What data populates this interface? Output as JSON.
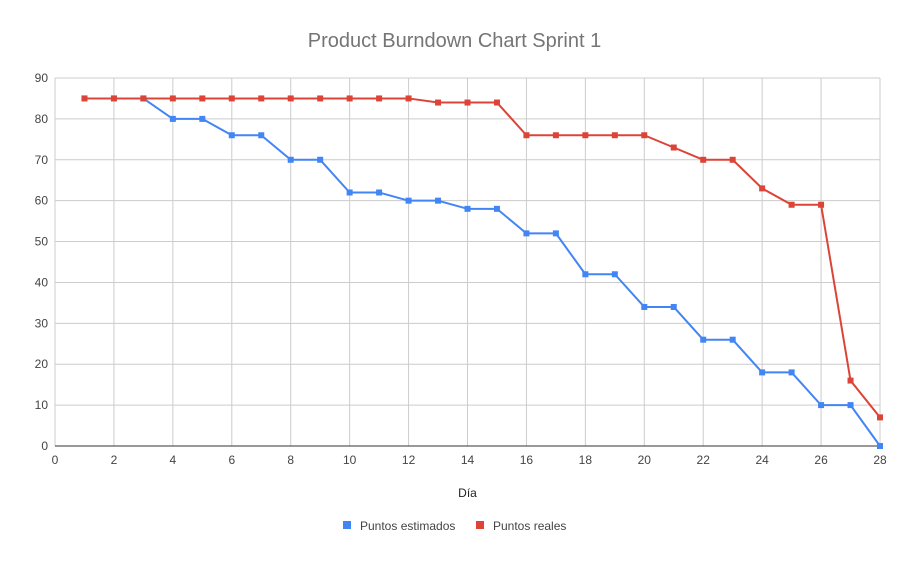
{
  "chart_data": {
    "type": "line",
    "title": "Product Burndown Chart Sprint 1",
    "xlabel": "Día",
    "ylabel": "",
    "xlim": [
      0,
      28
    ],
    "ylim": [
      0,
      90
    ],
    "x_ticks": [
      0,
      2,
      4,
      6,
      8,
      10,
      12,
      14,
      16,
      18,
      20,
      22,
      24,
      26,
      28
    ],
    "y_ticks": [
      0,
      10,
      20,
      30,
      40,
      50,
      60,
      70,
      80,
      90
    ],
    "grid": true,
    "legend_position": "bottom",
    "series": [
      {
        "name": "Puntos estimados",
        "color": "#4285f4",
        "x": [
          1,
          2,
          3,
          4,
          5,
          6,
          7,
          8,
          9,
          10,
          11,
          12,
          13,
          14,
          15,
          16,
          17,
          18,
          19,
          20,
          21,
          22,
          23,
          24,
          25,
          26,
          27,
          28
        ],
        "values": [
          85,
          85,
          85,
          80,
          80,
          76,
          76,
          70,
          70,
          62,
          62,
          60,
          60,
          58,
          58,
          52,
          52,
          42,
          42,
          34,
          34,
          26,
          26,
          18,
          18,
          10,
          10,
          0
        ]
      },
      {
        "name": "Puntos reales",
        "color": "#db4437",
        "x": [
          1,
          2,
          3,
          4,
          5,
          6,
          7,
          8,
          9,
          10,
          11,
          12,
          13,
          14,
          15,
          16,
          17,
          18,
          19,
          20,
          21,
          22,
          23,
          24,
          25,
          26,
          27,
          28
        ],
        "values": [
          85,
          85,
          85,
          85,
          85,
          85,
          85,
          85,
          85,
          85,
          85,
          85,
          84,
          84,
          84,
          76,
          76,
          76,
          76,
          76,
          73,
          70,
          70,
          63,
          59,
          59,
          16,
          7
        ]
      }
    ]
  }
}
